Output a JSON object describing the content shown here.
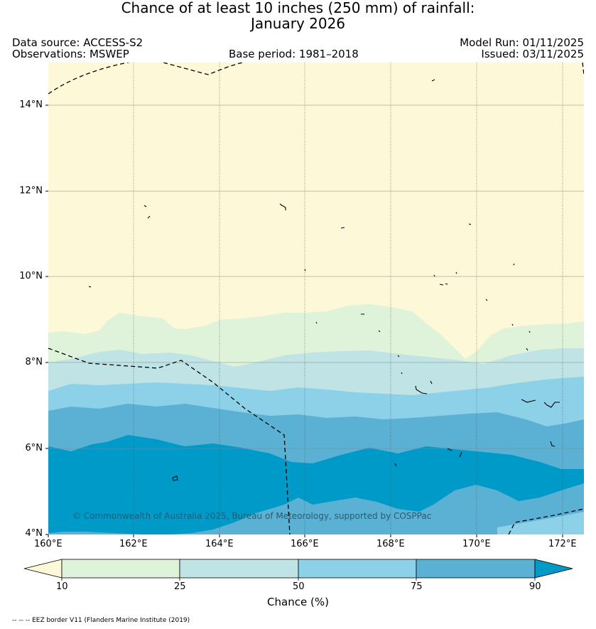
{
  "title": {
    "line1": "Chance of at least 10 inches (250  mm) of rainfall:",
    "line2": "January 2026"
  },
  "header": {
    "data_source": "Data source: ACCESS-S2",
    "observations": "Observations: MSWEP",
    "base_period": "Base period: 1981–2018",
    "model_run": "Model Run: 01/11/2025",
    "issued": "Issued: 03/11/2025"
  },
  "map": {
    "lon_range": [
      160,
      172.5
    ],
    "lat_range": [
      4,
      15
    ],
    "lat_labels": [
      "14°N",
      "12°N",
      "10°N",
      "8°N",
      "6°N",
      "4°N"
    ],
    "lon_labels": [
      "160°E",
      "162°E",
      "164°E",
      "166°E",
      "168°E",
      "170°E",
      "172°E"
    ],
    "copyright": "© Commonwealth of Australia 2025, Bureau of Meteorology, supported by COSPPac",
    "bands": [
      {
        "range": "<10%",
        "color": "#fdf9d8"
      },
      {
        "range": "10-25%",
        "color": "#def3da"
      },
      {
        "range": "25-50%",
        "color": "#c0e4e5"
      },
      {
        "range": "50-75%",
        "color": "#8dd1e8"
      },
      {
        "range": "75-90%",
        "color": "#5ab1d4"
      },
      {
        "range": ">90%",
        "color": "#009ac8"
      }
    ]
  },
  "colorbar": {
    "ticks": [
      "10",
      "25",
      "50",
      "75",
      "90"
    ],
    "label": "Chance (%)"
  },
  "legend_note": "-- -- -- EEZ border V11 (Flanders Marine Institute (2019)"
}
